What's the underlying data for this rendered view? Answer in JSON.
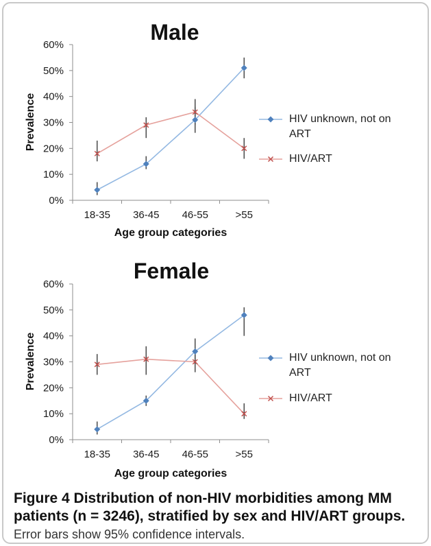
{
  "chart_data": [
    {
      "type": "line",
      "title": "Male",
      "categories": [
        "18-35",
        "36-45",
        "46-55",
        ">55"
      ],
      "xlabel": "Age group categories",
      "ylabel": "Prevalence",
      "ylim": [
        0,
        60
      ],
      "yticks": [
        "0%",
        "10%",
        "20%",
        "30%",
        "40%",
        "50%",
        "60%"
      ],
      "grid": false,
      "legend": "right",
      "series": [
        {
          "name": "HIV unknown, not on ART",
          "values": [
            4,
            14,
            31,
            51
          ],
          "ci_low": [
            2,
            12,
            26,
            47
          ],
          "ci_high": [
            7,
            17,
            36,
            55
          ],
          "marker": "diamond",
          "color": "#4f81bd",
          "line_color": "#93b8e2"
        },
        {
          "name": "HIV/ART",
          "values": [
            18,
            29,
            34,
            20
          ],
          "ci_low": [
            15,
            24,
            29,
            16
          ],
          "ci_high": [
            23,
            32,
            39,
            24
          ],
          "marker": "x",
          "color": "#c0504d",
          "line_color": "#e5a19c"
        }
      ]
    },
    {
      "type": "line",
      "title": "Female",
      "categories": [
        "18-35",
        "36-45",
        "46-55",
        ">55"
      ],
      "xlabel": "Age group categories",
      "ylabel": "Prevalence",
      "ylim": [
        0,
        60
      ],
      "yticks": [
        "0%",
        "10%",
        "20%",
        "30%",
        "40%",
        "50%",
        "60%"
      ],
      "grid": false,
      "legend": "right",
      "series": [
        {
          "name": "HIV unknown, not on ART",
          "values": [
            4,
            15,
            34,
            48
          ],
          "ci_low": [
            2,
            13,
            29,
            40
          ],
          "ci_high": [
            7,
            17,
            39,
            51
          ],
          "marker": "diamond",
          "color": "#4f81bd",
          "line_color": "#93b8e2"
        },
        {
          "name": "HIV/ART",
          "values": [
            29,
            31,
            30,
            10
          ],
          "ci_low": [
            25,
            25,
            26,
            8
          ],
          "ci_high": [
            33,
            36,
            34,
            14
          ],
          "marker": "x",
          "color": "#c0504d",
          "line_color": "#e5a19c"
        }
      ]
    }
  ],
  "figure": {
    "label": "Figure 4",
    "caption": "Distribution of non-HIV morbidities among MM patients (n = 3246), stratified by sex and HIV/ART groups.",
    "note": "Error bars show 95% confidence intervals."
  },
  "colors": {
    "axis": "#8c8c8c",
    "error_bar": "#3d3d3d",
    "frame_border": "#c8c8c8"
  }
}
